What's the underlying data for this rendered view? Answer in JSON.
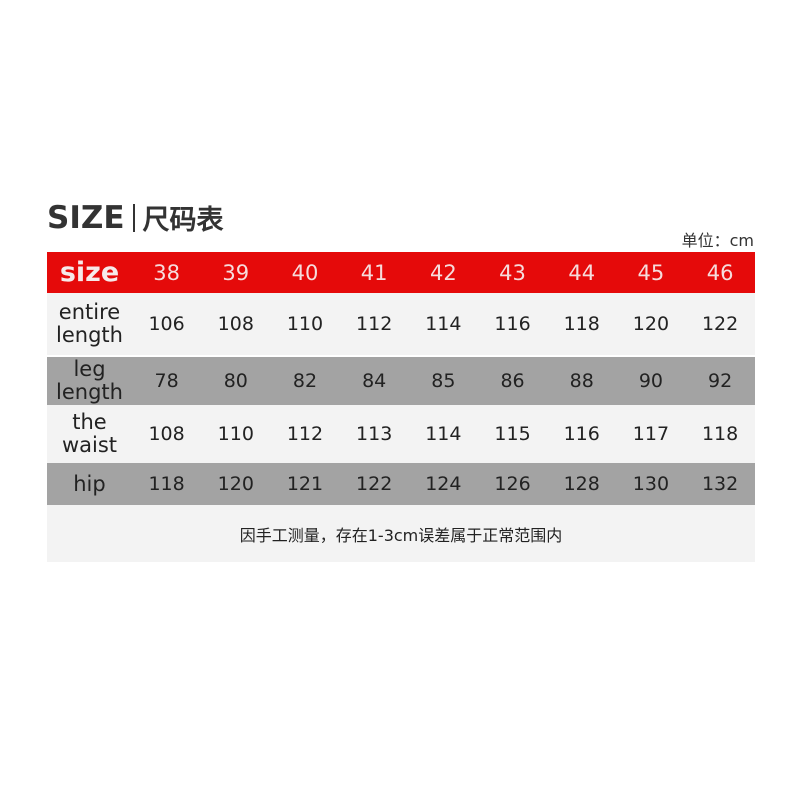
{
  "title": {
    "en": "SIZE",
    "cn": "尺码表"
  },
  "unit": "单位：cm",
  "colors": {
    "header": "#e50a0a",
    "row_light": "#f3f3f3",
    "row_dark": "#a3a3a3"
  },
  "header": {
    "label": "size",
    "sizes": [
      "38",
      "39",
      "40",
      "41",
      "42",
      "43",
      "44",
      "45",
      "46"
    ]
  },
  "rows": [
    {
      "label": "entire length",
      "values": [
        "106",
        "108",
        "110",
        "112",
        "114",
        "116",
        "118",
        "120",
        "122"
      ]
    },
    {
      "label": "leg length",
      "values": [
        "78",
        "80",
        "82",
        "84",
        "85",
        "86",
        "88",
        "90",
        "92"
      ]
    },
    {
      "label": "the waist",
      "values": [
        "108",
        "110",
        "112",
        "113",
        "114",
        "115",
        "116",
        "117",
        "118"
      ]
    },
    {
      "label": "hip",
      "values": [
        "118",
        "120",
        "121",
        "122",
        "124",
        "126",
        "128",
        "130",
        "132"
      ]
    }
  ],
  "note": "因手工测量，存在1-3cm误差属于正常范围内"
}
